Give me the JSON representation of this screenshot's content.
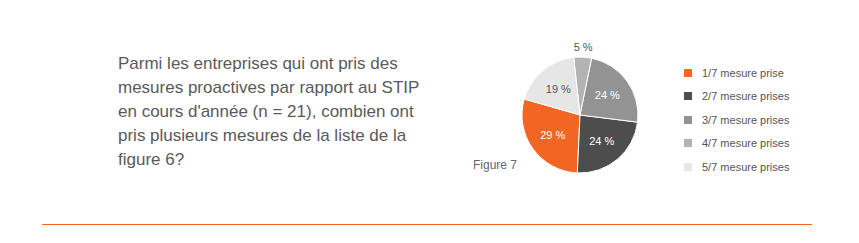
{
  "chart_data": {
    "type": "pie",
    "title": "Parmi les entreprises qui ont pris des mesures proactives par rapport au STIP en cours d'année (n = 21), combien ont pris plusieurs mesures de la liste de la figure 6?",
    "annotations": [
      "Figure 7"
    ],
    "categories": [
      "1/7 mesure prise",
      "2/7 mesure prises",
      "3/7 mesure prises",
      "4/7 mesure prises",
      "5/7 mesure prises"
    ],
    "values": [
      29,
      24,
      24,
      5,
      19
    ],
    "value_labels": [
      "29 %",
      "24 %",
      "24 %",
      "5 %",
      "19 %"
    ],
    "colors": [
      "#f26522",
      "#4d4d4d",
      "#939393",
      "#b3b3b3",
      "#e6e6e6"
    ],
    "data_labels": true,
    "legend": "right"
  }
}
